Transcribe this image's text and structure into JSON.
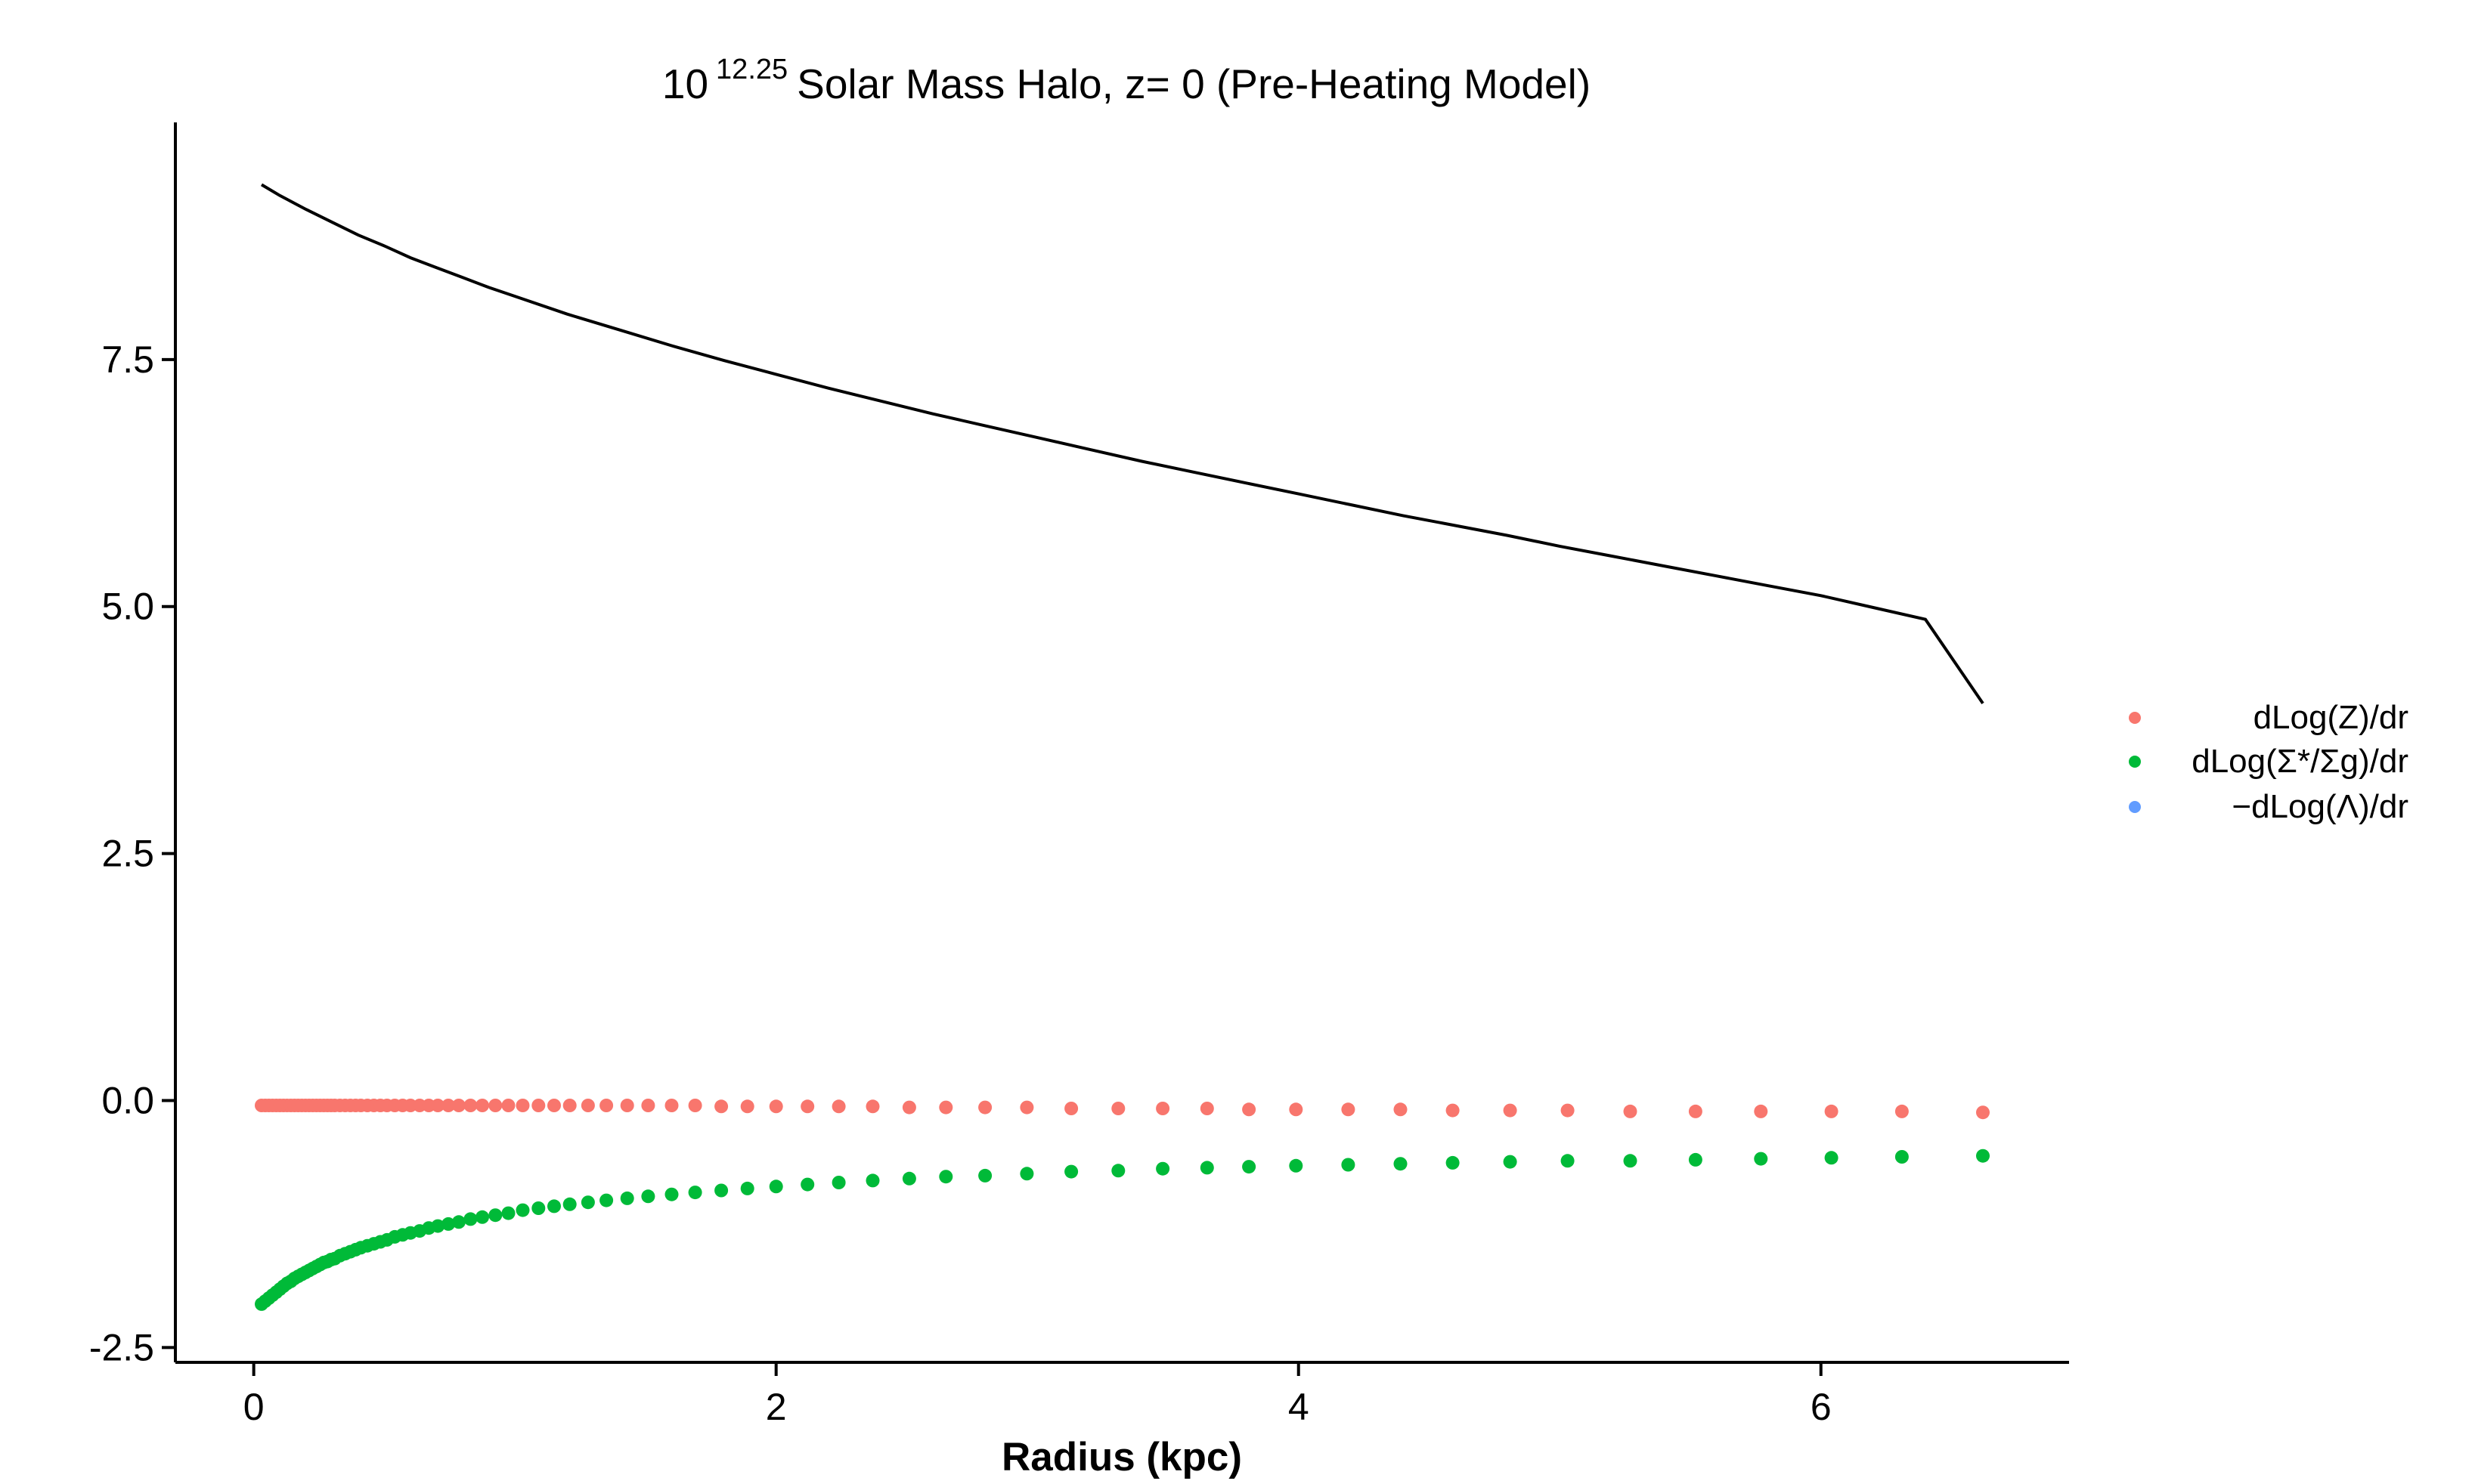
{
  "chart_data": {
    "type": "scatter",
    "title": {
      "prefix": "10",
      "exponent": "12.25",
      "suffix": "Solar Mass Halo, z= 0 (Pre-Heating Model)"
    },
    "xlabel": "Radius (kpc)",
    "ylabel": "",
    "xlim": [
      -0.3,
      6.95
    ],
    "ylim": [
      -2.65,
      9.9
    ],
    "x_ticks": [
      0,
      2,
      4,
      6
    ],
    "x_tick_labels": [
      "0",
      "2",
      "4",
      "6"
    ],
    "y_ticks": [
      -2.5,
      0.0,
      2.5,
      5.0,
      7.5
    ],
    "y_tick_labels": [
      "-2.5",
      "0.0",
      "2.5",
      "5.0",
      "7.5"
    ],
    "grid": false,
    "legend_position": "right",
    "legend": [
      {
        "label": "dLog(Z)/dr",
        "color": "#F8766D"
      },
      {
        "label": "dLog(Σ*/Σg)/dr",
        "color": "#00BA38"
      },
      {
        "label": "−dLog(Λ)/dr",
        "color": "#619CFF"
      }
    ],
    "series": [
      {
        "name": "dLog(Z)/dr",
        "color": "#F8766D",
        "kind": "points",
        "x": [
          0.03,
          0.044,
          0.058,
          0.072,
          0.086,
          0.1,
          0.114,
          0.128,
          0.142,
          0.156,
          0.17,
          0.184,
          0.198,
          0.212,
          0.226,
          0.24,
          0.254,
          0.268,
          0.282,
          0.296,
          0.31,
          0.33,
          0.35,
          0.37,
          0.39,
          0.41,
          0.435,
          0.46,
          0.485,
          0.51,
          0.54,
          0.57,
          0.6,
          0.635,
          0.67,
          0.705,
          0.745,
          0.785,
          0.83,
          0.875,
          0.925,
          0.975,
          1.03,
          1.09,
          1.15,
          1.21,
          1.28,
          1.35,
          1.43,
          1.51,
          1.6,
          1.69,
          1.79,
          1.89,
          2.0,
          2.12,
          2.24,
          2.37,
          2.51,
          2.65,
          2.8,
          2.96,
          3.13,
          3.31,
          3.48,
          3.65,
          3.81,
          3.99,
          4.19,
          4.39,
          4.59,
          4.81,
          5.03,
          5.27,
          5.52,
          5.77,
          6.04,
          6.31,
          6.62
        ],
        "y": [
          -0.05,
          -0.05,
          -0.05,
          -0.05,
          -0.05,
          -0.05,
          -0.05,
          -0.05,
          -0.05,
          -0.05,
          -0.05,
          -0.05,
          -0.05,
          -0.05,
          -0.05,
          -0.05,
          -0.05,
          -0.05,
          -0.05,
          -0.05,
          -0.05,
          -0.05,
          -0.05,
          -0.05,
          -0.05,
          -0.05,
          -0.05,
          -0.05,
          -0.05,
          -0.05,
          -0.05,
          -0.05,
          -0.05,
          -0.05,
          -0.05,
          -0.05,
          -0.05,
          -0.05,
          -0.05,
          -0.05,
          -0.05,
          -0.05,
          -0.05,
          -0.05,
          -0.05,
          -0.05,
          -0.05,
          -0.05,
          -0.05,
          -0.05,
          -0.05,
          -0.05,
          -0.06,
          -0.06,
          -0.06,
          -0.06,
          -0.06,
          -0.06,
          -0.07,
          -0.07,
          -0.07,
          -0.07,
          -0.08,
          -0.08,
          -0.08,
          -0.08,
          -0.09,
          -0.09,
          -0.09,
          -0.09,
          -0.1,
          -0.1,
          -0.1,
          -0.11,
          -0.11,
          -0.11,
          -0.11,
          -0.11,
          -0.12
        ]
      },
      {
        "name": "dLog(Σ*/Σg)/dr",
        "color": "#00BA38",
        "kind": "points",
        "x": [
          0.03,
          0.044,
          0.058,
          0.072,
          0.086,
          0.1,
          0.114,
          0.128,
          0.142,
          0.156,
          0.17,
          0.184,
          0.198,
          0.212,
          0.226,
          0.24,
          0.254,
          0.268,
          0.282,
          0.296,
          0.31,
          0.33,
          0.35,
          0.37,
          0.39,
          0.41,
          0.435,
          0.46,
          0.485,
          0.51,
          0.54,
          0.57,
          0.6,
          0.635,
          0.67,
          0.705,
          0.745,
          0.785,
          0.83,
          0.875,
          0.925,
          0.975,
          1.03,
          1.09,
          1.15,
          1.21,
          1.28,
          1.35,
          1.43,
          1.51,
          1.6,
          1.69,
          1.79,
          1.89,
          2.0,
          2.12,
          2.24,
          2.37,
          2.51,
          2.65,
          2.8,
          2.96,
          3.13,
          3.31,
          3.48,
          3.65,
          3.81,
          3.99,
          4.19,
          4.39,
          4.59,
          4.81,
          5.03,
          5.27,
          5.52,
          5.77,
          6.04,
          6.31,
          6.62
        ],
        "y": [
          -2.06,
          -2.03,
          -2.0,
          -1.97,
          -1.94,
          -1.91,
          -1.88,
          -1.85,
          -1.83,
          -1.8,
          -1.78,
          -1.76,
          -1.74,
          -1.72,
          -1.7,
          -1.68,
          -1.66,
          -1.64,
          -1.63,
          -1.61,
          -1.6,
          -1.57,
          -1.55,
          -1.53,
          -1.51,
          -1.49,
          -1.47,
          -1.45,
          -1.43,
          -1.41,
          -1.38,
          -1.36,
          -1.34,
          -1.32,
          -1.29,
          -1.27,
          -1.25,
          -1.23,
          -1.2,
          -1.18,
          -1.16,
          -1.14,
          -1.11,
          -1.09,
          -1.07,
          -1.05,
          -1.03,
          -1.01,
          -0.99,
          -0.97,
          -0.95,
          -0.93,
          -0.91,
          -0.89,
          -0.87,
          -0.85,
          -0.83,
          -0.81,
          -0.79,
          -0.77,
          -0.76,
          -0.74,
          -0.72,
          -0.71,
          -0.69,
          -0.68,
          -0.67,
          -0.66,
          -0.65,
          -0.64,
          -0.63,
          -0.62,
          -0.61,
          -0.61,
          -0.6,
          -0.59,
          -0.58,
          -0.57,
          -0.56
        ]
      },
      {
        "name": "−dLog(Λ)/dr",
        "color": "#000000",
        "kind": "line",
        "x": [
          0.03,
          0.1,
          0.2,
          0.3,
          0.4,
          0.5,
          0.6,
          0.7,
          0.8,
          0.9,
          1.0,
          1.2,
          1.4,
          1.6,
          1.8,
          2.0,
          2.2,
          2.4,
          2.6,
          2.8,
          3.0,
          3.2,
          3.4,
          3.6,
          3.8,
          4.0,
          4.2,
          4.4,
          4.6,
          4.8,
          5.0,
          5.2,
          5.4,
          5.6,
          5.8,
          6.0,
          6.2,
          6.4,
          6.62
        ],
        "y": [
          9.27,
          9.16,
          9.02,
          8.89,
          8.76,
          8.65,
          8.53,
          8.43,
          8.33,
          8.23,
          8.14,
          7.96,
          7.8,
          7.64,
          7.49,
          7.35,
          7.21,
          7.08,
          6.95,
          6.83,
          6.71,
          6.59,
          6.47,
          6.36,
          6.25,
          6.14,
          6.03,
          5.92,
          5.82,
          5.72,
          5.61,
          5.51,
          5.41,
          5.31,
          5.21,
          5.11,
          4.99,
          4.87,
          4.02
        ]
      }
    ]
  }
}
